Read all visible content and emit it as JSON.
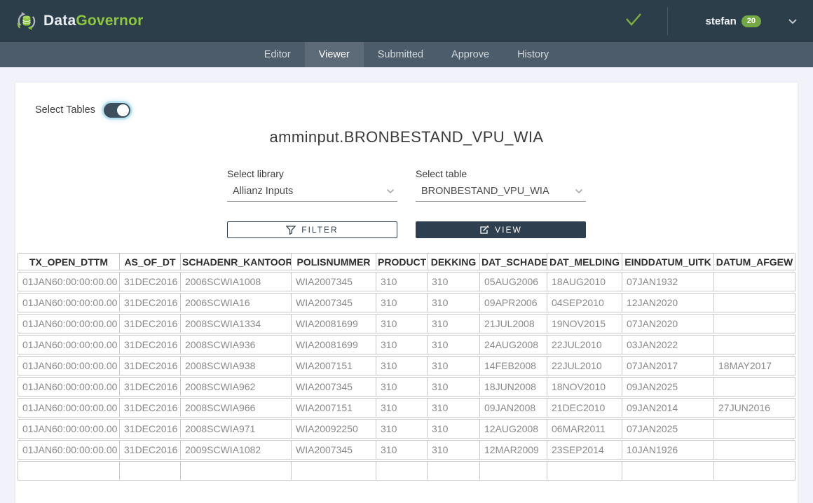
{
  "header": {
    "brand": {
      "part1": "Data",
      "part2": "Governor"
    },
    "icons": {
      "logo": "database-sync-icon",
      "status": "checkmark-icon",
      "user_menu": "chevron-down-icon"
    },
    "user": {
      "name": "stefan",
      "badge_count": "20"
    }
  },
  "nav": {
    "tabs": [
      {
        "label": "Editor",
        "active": false
      },
      {
        "label": "Viewer",
        "active": true
      },
      {
        "label": "Submitted",
        "active": false
      },
      {
        "label": "Approve",
        "active": false
      },
      {
        "label": "History",
        "active": false
      }
    ]
  },
  "controls": {
    "select_tables_label": "Select Tables",
    "toggle": {
      "state": "on"
    },
    "title": "amminput.BRONBESTAND_VPU_WIA",
    "library_select": {
      "label": "Select library",
      "value": "Allianz Inputs"
    },
    "table_select": {
      "label": "Select table",
      "value": "BRONBESTAND_VPU_WIA"
    },
    "filter_button_label": "FILTER",
    "view_button_label": "VIEW"
  },
  "data_table": {
    "columns": [
      "TX_OPEN_DTTM",
      "AS_OF_DT",
      "SCHADENR_KANTOOR",
      "POLISNUMMER",
      "PRODUCT",
      "DEKKING",
      "DAT_SCHADE",
      "DAT_MELDING",
      "EINDDATUM_UITK",
      "DATUM_AFGEW"
    ],
    "rows": [
      [
        "01JAN60:00:00:00.00",
        "31DEC2016",
        "2006SCWIA1008",
        "WIA2007345",
        "310",
        "310",
        "05AUG2006",
        "18AUG2010",
        "07JAN1932",
        ""
      ],
      [
        "01JAN60:00:00:00.00",
        "31DEC2016",
        "2006SCWIA16",
        "WIA2007345",
        "310",
        "310",
        "09APR2006",
        "04SEP2010",
        "12JAN2020",
        ""
      ],
      [
        "01JAN60:00:00:00.00",
        "31DEC2016",
        "2008SCWIA1334",
        "WIA20081699",
        "310",
        "310",
        "21JUL2008",
        "19NOV2015",
        "07JAN2020",
        ""
      ],
      [
        "01JAN60:00:00:00.00",
        "31DEC2016",
        "2008SCWIA936",
        "WIA20081699",
        "310",
        "310",
        "24AUG2008",
        "22JUL2010",
        "03JAN2022",
        ""
      ],
      [
        "01JAN60:00:00:00.00",
        "31DEC2016",
        "2008SCWIA938",
        "WIA2007151",
        "310",
        "310",
        "14FEB2008",
        "22JUL2010",
        "07JAN2017",
        "18MAY2017"
      ],
      [
        "01JAN60:00:00:00.00",
        "31DEC2016",
        "2008SCWIA962",
        "WIA2007345",
        "310",
        "310",
        "18JUN2008",
        "18NOV2010",
        "09JAN2025",
        ""
      ],
      [
        "01JAN60:00:00:00.00",
        "31DEC2016",
        "2008SCWIA966",
        "WIA2007151",
        "310",
        "310",
        "09JAN2008",
        "21DEC2010",
        "09JAN2014",
        "27JUN2016"
      ],
      [
        "01JAN60:00:00:00.00",
        "31DEC2016",
        "2008SCWIA971",
        "WIA20092250",
        "310",
        "310",
        "12AUG2008",
        "06MAR2011",
        "07JAN2025",
        ""
      ],
      [
        "01JAN60:00:00:00.00",
        "31DEC2016",
        "2009SCWIA1082",
        "WIA2007345",
        "310",
        "310",
        "12MAR2009",
        "23SEP2014",
        "10JAN1926",
        ""
      ],
      [
        "",
        "",
        "",
        "",
        "",
        "",
        "",
        "",
        "",
        ""
      ]
    ]
  },
  "colors": {
    "brand_green": "#8CC63F",
    "badge_green": "#73A844",
    "header_bg": "#2D3E4B",
    "nav_bg": "#4D5C6A",
    "nav_active_bg": "#5D6B78",
    "dark_button_bg": "#2E4050",
    "toggle_glow": "#7EC8E3",
    "table_border": "#C9C9C9"
  }
}
